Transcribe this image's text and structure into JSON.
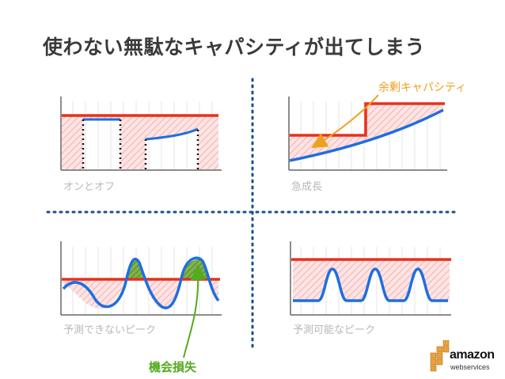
{
  "slide": {
    "title": "使わない無駄なキャパシティが出てしまう",
    "panels": [
      {
        "label": "オンとオフ"
      },
      {
        "label": "急成長"
      },
      {
        "label": "予測できないピーク"
      },
      {
        "label": "予測可能なピーク"
      }
    ],
    "callouts": {
      "excess_capacity": "余剰キャパシティ",
      "lost_opportunity": "機会損失"
    },
    "logo": {
      "word": "amazon",
      "sub": "webservices"
    }
  },
  "colors": {
    "capacity_line": "#e8301c",
    "demand_line": "#1f6ee0",
    "waste_fill": "#f7c6c6",
    "lost_fill": "#5e9e2c",
    "callout_orange": "#f0a020",
    "callout_green": "#55aa22",
    "divider": "#1a4f8a"
  }
}
